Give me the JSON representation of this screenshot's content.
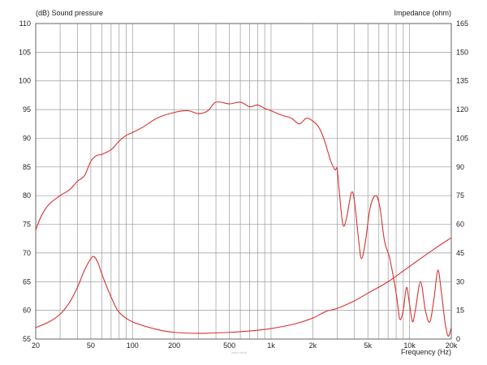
{
  "chart_data": {
    "type": "line",
    "title_left": "(dB)  Sound pressure",
    "title_right": "Impedance  (ohm)",
    "xlabel": "Frequency  (Hz)",
    "x_scale": "log",
    "xlim": [
      20,
      20000
    ],
    "ylim_left": [
      55,
      110
    ],
    "ylim_right": [
      0,
      165
    ],
    "grid": true,
    "x_ticks": [
      {
        "value": 20,
        "label": "20"
      },
      {
        "value": 50,
        "label": "50"
      },
      {
        "value": 100,
        "label": "100"
      },
      {
        "value": 200,
        "label": "200"
      },
      {
        "value": 500,
        "label": "500"
      },
      {
        "value": 1000,
        "label": "1k"
      },
      {
        "value": 2000,
        "label": "2k"
      },
      {
        "value": 5000,
        "label": "5k"
      },
      {
        "value": 10000,
        "label": "10k"
      },
      {
        "value": 20000,
        "label": "20k"
      }
    ],
    "y_left_ticks": [
      55,
      60,
      65,
      70,
      75,
      80,
      85,
      90,
      95,
      100,
      105,
      110
    ],
    "y_right_ticks": [
      0,
      15,
      30,
      45,
      60,
      75,
      90,
      105,
      120,
      135,
      150,
      165
    ],
    "line_color": "#d9322f",
    "series": [
      {
        "axis": "left",
        "points": [
          [
            20,
            74
          ],
          [
            22,
            76.5
          ],
          [
            25,
            78.5
          ],
          [
            30,
            80
          ],
          [
            35,
            81
          ],
          [
            40,
            82.5
          ],
          [
            45,
            83.5
          ],
          [
            50,
            86
          ],
          [
            55,
            87
          ],
          [
            60,
            87.2
          ],
          [
            70,
            88
          ],
          [
            80,
            89.5
          ],
          [
            90,
            90.5
          ],
          [
            100,
            91
          ],
          [
            120,
            92
          ],
          [
            150,
            93.5
          ],
          [
            200,
            94.5
          ],
          [
            250,
            94.8
          ],
          [
            300,
            94.3
          ],
          [
            350,
            94.8
          ],
          [
            400,
            96.3
          ],
          [
            500,
            96
          ],
          [
            600,
            96.3
          ],
          [
            700,
            95.5
          ],
          [
            800,
            95.8
          ],
          [
            900,
            95.2
          ],
          [
            1000,
            94.8
          ],
          [
            1200,
            94
          ],
          [
            1400,
            93.5
          ],
          [
            1600,
            92.5
          ],
          [
            1800,
            93.5
          ],
          [
            2000,
            93
          ],
          [
            2200,
            92
          ],
          [
            2400,
            90
          ],
          [
            2700,
            86
          ],
          [
            2900,
            84.5
          ],
          [
            3000,
            84.7
          ],
          [
            3100,
            81
          ],
          [
            3300,
            75
          ],
          [
            3500,
            76
          ],
          [
            3800,
            80.5
          ],
          [
            4000,
            79
          ],
          [
            4300,
            72
          ],
          [
            4500,
            69
          ],
          [
            4800,
            72
          ],
          [
            5200,
            78
          ],
          [
            5700,
            80
          ],
          [
            6100,
            78
          ],
          [
            6600,
            72
          ],
          [
            7200,
            69
          ],
          [
            8000,
            63
          ],
          [
            8500,
            58.5
          ],
          [
            9000,
            60
          ],
          [
            9500,
            64
          ],
          [
            10000,
            61
          ],
          [
            10500,
            58
          ],
          [
            11000,
            60
          ],
          [
            12000,
            65
          ],
          [
            13000,
            60
          ],
          [
            14000,
            58
          ],
          [
            15000,
            62
          ],
          [
            16000,
            67
          ],
          [
            17000,
            63
          ],
          [
            18000,
            58
          ],
          [
            19000,
            55.5
          ],
          [
            20000,
            57
          ]
        ]
      },
      {
        "axis": "right",
        "points": [
          [
            20,
            6
          ],
          [
            25,
            9
          ],
          [
            30,
            13
          ],
          [
            35,
            19
          ],
          [
            40,
            27
          ],
          [
            45,
            36
          ],
          [
            50,
            42
          ],
          [
            53,
            43
          ],
          [
            57,
            39
          ],
          [
            60,
            34
          ],
          [
            70,
            22
          ],
          [
            80,
            14
          ],
          [
            100,
            9
          ],
          [
            150,
            5
          ],
          [
            200,
            3.5
          ],
          [
            300,
            3
          ],
          [
            500,
            3.5
          ],
          [
            700,
            4.2
          ],
          [
            1000,
            5.5
          ],
          [
            1500,
            8
          ],
          [
            2000,
            11
          ],
          [
            2500,
            14.5
          ],
          [
            3000,
            16
          ],
          [
            4000,
            20
          ],
          [
            5000,
            24
          ],
          [
            7000,
            30
          ],
          [
            10000,
            38
          ],
          [
            15000,
            47
          ],
          [
            20000,
            53
          ]
        ]
      }
    ],
    "watermark": "www.hifi.pl"
  }
}
